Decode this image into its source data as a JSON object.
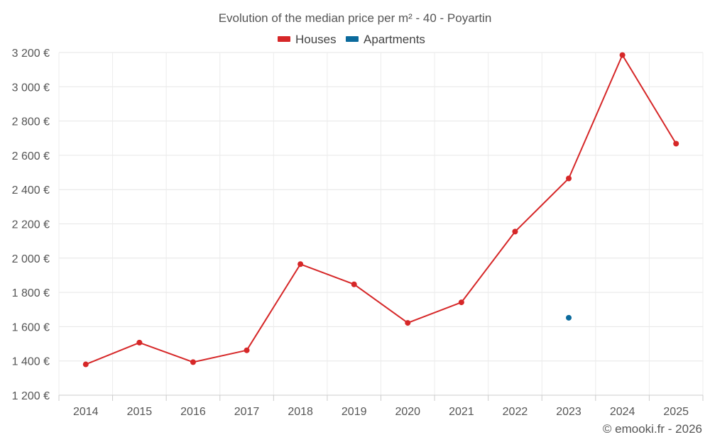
{
  "chart_data": {
    "type": "line",
    "title": "Evolution of the median price per m² - 40 - Poyartin",
    "categories": [
      "2014",
      "2015",
      "2016",
      "2017",
      "2018",
      "2019",
      "2020",
      "2021",
      "2022",
      "2023",
      "2024",
      "2025"
    ],
    "series": [
      {
        "name": "Houses",
        "color": "#d62728",
        "values": [
          1380,
          1507,
          1393,
          1462,
          1965,
          1847,
          1622,
          1742,
          2155,
          2465,
          3185,
          2668
        ]
      },
      {
        "name": "Apartments",
        "color": "#0b6a9c",
        "values": [
          null,
          null,
          null,
          null,
          null,
          null,
          null,
          null,
          null,
          1652,
          null,
          null
        ]
      }
    ],
    "ylim": [
      1200,
      3200
    ],
    "yticks": [
      1200,
      1400,
      1600,
      1800,
      2000,
      2200,
      2400,
      2600,
      2800,
      3000,
      3200
    ],
    "ytick_labels": [
      "1 200 €",
      "1 400 €",
      "1 600 €",
      "1 800 €",
      "2 000 €",
      "2 200 €",
      "2 400 €",
      "2 600 €",
      "2 800 €",
      "3 000 €",
      "3 200 €"
    ],
    "xlabel": "",
    "ylabel": "",
    "legend_position": "top-center",
    "grid": true
  },
  "credit": "© emooki.fr - 2026"
}
